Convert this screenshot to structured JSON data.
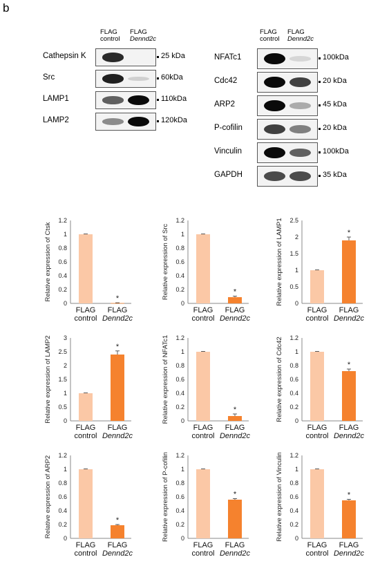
{
  "panel_letter": "b",
  "lanes": {
    "lane1_line1": "FLAG",
    "lane1_line2": "control",
    "lane2_line1": "FLAG",
    "lane2_line2": "Dennd2c"
  },
  "blots_left": [
    {
      "label": "Cathepsin K",
      "kda": "25 kDa",
      "band1": 0.85,
      "band2": 0.0
    },
    {
      "label": "Src",
      "kda": "60kDa",
      "band1": 0.9,
      "band2": 0.08
    },
    {
      "label": "LAMP1",
      "kda": "110kDa",
      "band1": 0.6,
      "band2": 1.0
    },
    {
      "label": "LAMP2",
      "kda": "120kDa",
      "band1": 0.4,
      "band2": 1.0
    }
  ],
  "blots_right": [
    {
      "label": "NFATc1",
      "kda": "100kDa",
      "band1": 1.0,
      "band2": 0.05
    },
    {
      "label": "Cdc42",
      "kda": "20 kDa",
      "band1": 1.0,
      "band2": 0.75
    },
    {
      "label": "ARP2",
      "kda": "45 kDa",
      "band1": 1.0,
      "band2": 0.25
    },
    {
      "label": "P-cofilin",
      "kda": "20 kDa",
      "band1": 0.75,
      "band2": 0.45
    },
    {
      "label": "Vinculin",
      "kda": "100kDa",
      "band1": 1.0,
      "band2": 0.6
    },
    {
      "label": "GAPDH",
      "kda": "35 kDa",
      "band1": 0.7,
      "band2": 0.7
    }
  ],
  "colors": {
    "control_bar": "#fbc8a6",
    "dennd2c_bar": "#f5822e"
  },
  "chart_data": [
    {
      "type": "bar",
      "ylabel": "Relative expression of Ctsk",
      "categories": [
        "FLAG control",
        "FLAG Dennd2c"
      ],
      "values": [
        1.0,
        0.005
      ],
      "errors": [
        0.004,
        0.004
      ],
      "ylim": [
        0,
        1.2
      ],
      "step": 0.2,
      "sig": "*"
    },
    {
      "type": "bar",
      "ylabel": "Relative expression of Src",
      "categories": [
        "FLAG control",
        "FLAG Dennd2c"
      ],
      "values": [
        1.0,
        0.09
      ],
      "errors": [
        0.005,
        0.015
      ],
      "ylim": [
        0,
        1.2
      ],
      "step": 0.2,
      "sig": "*"
    },
    {
      "type": "bar",
      "ylabel": "Relative expression of LAMP1",
      "categories": [
        "FLAG control",
        "FLAG Dennd2c"
      ],
      "values": [
        1.0,
        1.9
      ],
      "errors": [
        0.01,
        0.1
      ],
      "ylim": [
        0,
        2.5
      ],
      "step": 0.5,
      "sig": "*"
    },
    {
      "type": "bar",
      "ylabel": "Relative expression of LAMP2",
      "categories": [
        "FLAG control",
        "FLAG Dennd2c"
      ],
      "values": [
        1.0,
        2.4
      ],
      "errors": [
        0.01,
        0.13
      ],
      "ylim": [
        0,
        3
      ],
      "step": 0.5,
      "sig": "*"
    },
    {
      "type": "bar",
      "ylabel": "Relative expression of  NFATc1",
      "categories": [
        "FLAG control",
        "FLAG Dennd2c"
      ],
      "values": [
        1.0,
        0.07
      ],
      "errors": [
        0.005,
        0.03
      ],
      "ylim": [
        0,
        1.2
      ],
      "step": 0.2,
      "sig": "*"
    },
    {
      "type": "bar",
      "ylabel": "Relative expression of Cdc42",
      "categories": [
        "FLAG control",
        "FLAG Dennd2c"
      ],
      "values": [
        1.0,
        0.72
      ],
      "errors": [
        0.005,
        0.03
      ],
      "ylim": [
        0,
        1.2
      ],
      "step": 0.2,
      "sig": "*"
    },
    {
      "type": "bar",
      "ylabel": "Relative expression of ARP2",
      "categories": [
        "FLAG control",
        "FLAG Dennd2c"
      ],
      "values": [
        1.0,
        0.19
      ],
      "errors": [
        0.005,
        0.01
      ],
      "ylim": [
        0,
        1.2
      ],
      "step": 0.2,
      "sig": "*"
    },
    {
      "type": "bar",
      "ylabel": "Relative expression of P-cofilin",
      "categories": [
        "FLAG control",
        "FLAG Dennd2c"
      ],
      "values": [
        1.0,
        0.56
      ],
      "errors": [
        0.005,
        0.015
      ],
      "ylim": [
        0,
        1.2
      ],
      "step": 0.2,
      "sig": "*"
    },
    {
      "type": "bar",
      "ylabel": "Relative expression of Vinculin",
      "categories": [
        "FLAG control",
        "FLAG Dennd2c"
      ],
      "values": [
        1.0,
        0.55
      ],
      "errors": [
        0.005,
        0.015
      ],
      "ylim": [
        0,
        1.2
      ],
      "step": 0.2,
      "sig": "*"
    }
  ]
}
